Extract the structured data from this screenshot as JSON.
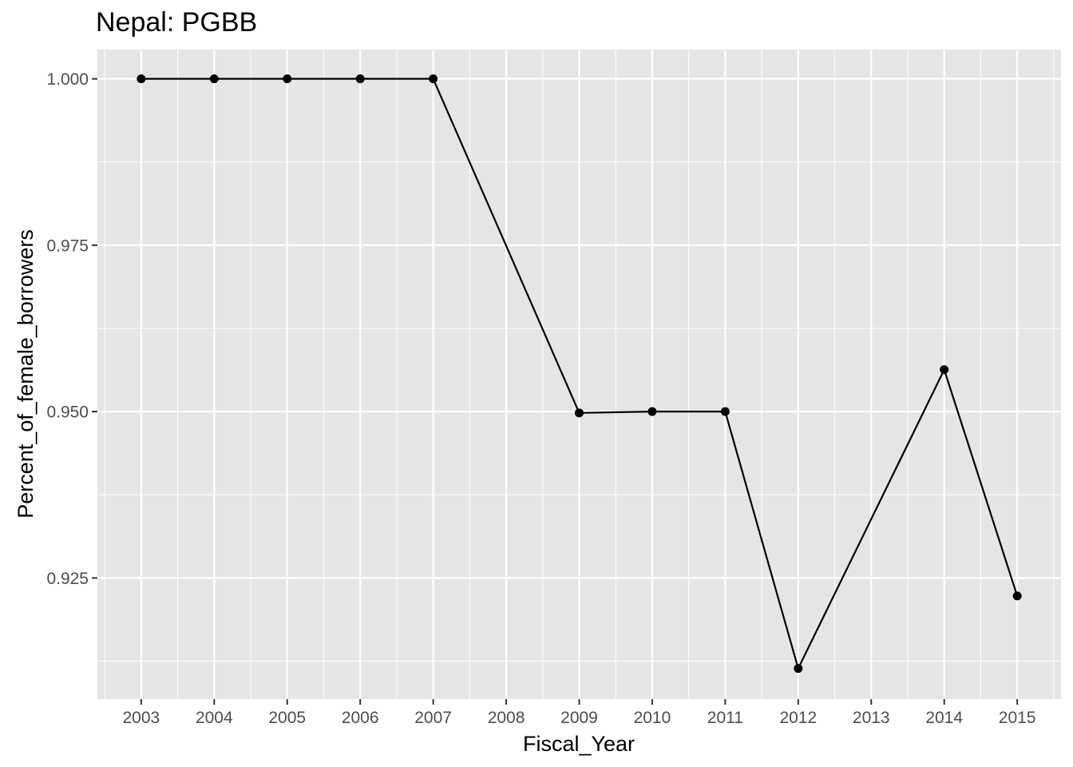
{
  "chart_data": {
    "type": "line",
    "title": "Nepal:  PGBB",
    "xlabel": "Fiscal_Year",
    "ylabel": "Percent_of_female_borrowers",
    "x": [
      "2003",
      "2004",
      "2005",
      "2006",
      "2007",
      "2008",
      "2009",
      "2010",
      "2011",
      "2012",
      "2013",
      "2014",
      "2015"
    ],
    "series": [
      {
        "name": "Percent_of_female_borrowers",
        "points": [
          {
            "x": "2003",
            "y": 1.0
          },
          {
            "x": "2004",
            "y": 1.0
          },
          {
            "x": "2005",
            "y": 1.0
          },
          {
            "x": "2006",
            "y": 1.0
          },
          {
            "x": "2007",
            "y": 1.0
          },
          {
            "x": "2009",
            "y": 0.9498
          },
          {
            "x": "2010",
            "y": 0.95
          },
          {
            "x": "2011",
            "y": 0.95
          },
          {
            "x": "2012",
            "y": 0.9114
          },
          {
            "x": "2014",
            "y": 0.9563
          },
          {
            "x": "2015",
            "y": 0.9223
          }
        ]
      }
    ],
    "yticks": [
      0.925,
      0.95,
      0.975,
      1.0
    ],
    "ytick_labels": [
      "0.925",
      "0.950",
      "0.975",
      "1.000"
    ],
    "ylim": [
      0.9068,
      1.0044
    ],
    "grid": true,
    "colors": {
      "panel": "#e5e5e5",
      "grid": "#ffffff",
      "line": "#000000",
      "tick_text": "#4d4d4d"
    }
  }
}
